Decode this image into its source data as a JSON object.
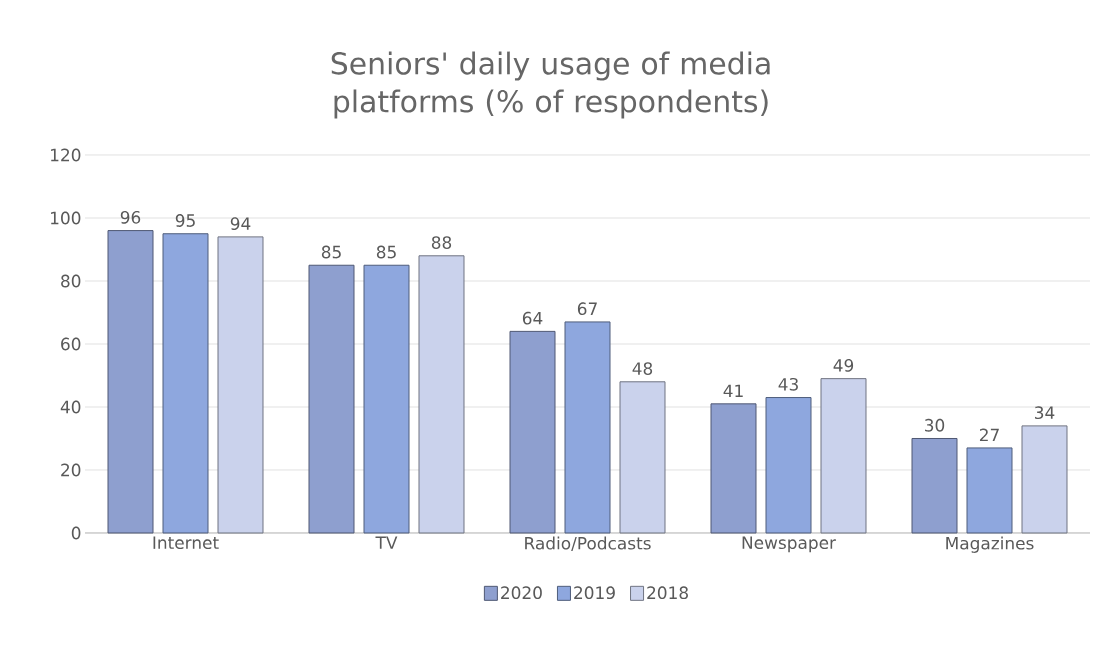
{
  "chart_data": {
    "type": "bar",
    "title": "Seniors' daily usage of media platforms (% of respondents)",
    "categories": [
      "Internet",
      "TV",
      "Radio/Podcasts",
      "Newspaper",
      "Magazines"
    ],
    "series": [
      {
        "name": "2020",
        "color": "#8e9fcf",
        "values": [
          96,
          85,
          64,
          41,
          30
        ]
      },
      {
        "name": "2019",
        "color": "#8ea7de",
        "values": [
          95,
          85,
          67,
          43,
          27
        ]
      },
      {
        "name": "2018",
        "color": "#cad2ec",
        "values": [
          94,
          88,
          48,
          49,
          34
        ]
      }
    ],
    "ylim": [
      0,
      120
    ],
    "yticks": [
      0,
      20,
      40,
      60,
      80,
      100,
      120
    ],
    "grid": "y",
    "legend": "bottom",
    "data_labels": true
  }
}
